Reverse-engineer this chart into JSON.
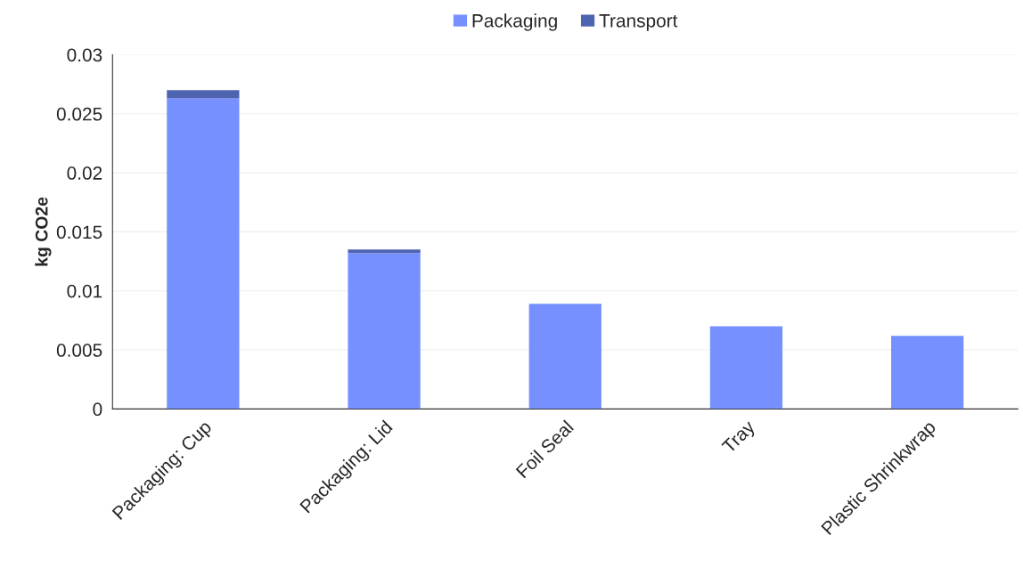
{
  "chart_data": {
    "type": "bar",
    "stacked": true,
    "categories": [
      "Packaging: Cup",
      "Packaging: Lid",
      "Foil Seal",
      "Tray",
      "Plastic Shrinkwrap"
    ],
    "ylabel": "kg CO2e",
    "series": [
      {
        "name": "Packaging",
        "color": "#7790ff",
        "values": [
          0.0263,
          0.0132,
          0.0089,
          0.007,
          0.0062
        ]
      },
      {
        "name": "Transport",
        "color": "#4f64b0",
        "values": [
          0.0007,
          0.0003,
          null,
          null,
          null
        ]
      }
    ],
    "ylim": [
      0,
      0.03
    ],
    "yticks": [
      0,
      0.005,
      0.01,
      0.015,
      0.02,
      0.025,
      0.03
    ],
    "grid": "y",
    "legend": "top"
  }
}
